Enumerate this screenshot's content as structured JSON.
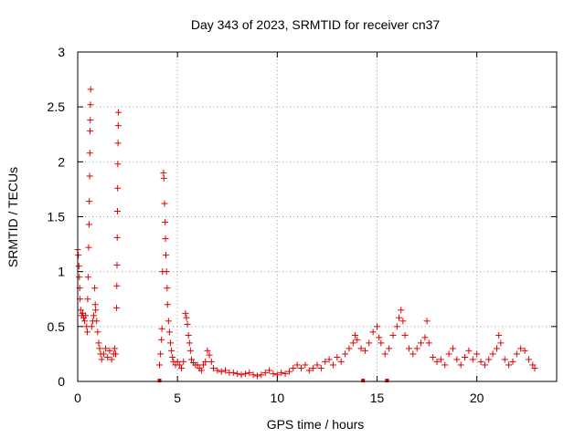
{
  "chart_data": {
    "type": "scatter",
    "title": "Day 343 of 2023, SRMTID for receiver cn37",
    "xlabel": "GPS time / hours",
    "ylabel": "SRMTID / TECUs",
    "xlim": [
      0,
      24
    ],
    "ylim": [
      0,
      3
    ],
    "xticks": [
      0,
      5,
      10,
      15,
      20
    ],
    "yticks": [
      0,
      0.5,
      1,
      1.5,
      2,
      2.5,
      3
    ],
    "xtick_labels": [
      "0",
      "5",
      "10",
      "15",
      "20"
    ],
    "ytick_labels": [
      "0",
      "0.5",
      "1",
      "1.5",
      "2",
      "2.5",
      "3"
    ],
    "grid": true,
    "marker": "+",
    "color": "#e00000",
    "series": [
      {
        "name": "SRMTID",
        "points": [
          [
            0.0,
            1.2
          ],
          [
            0.03,
            1.15
          ],
          [
            0.06,
            1.05
          ],
          [
            0.08,
            0.95
          ],
          [
            0.1,
            0.85
          ],
          [
            0.12,
            0.75
          ],
          [
            0.15,
            0.65
          ],
          [
            0.2,
            0.6
          ],
          [
            0.25,
            0.62
          ],
          [
            0.3,
            0.58
          ],
          [
            0.35,
            0.55
          ],
          [
            0.4,
            0.6
          ],
          [
            0.45,
            0.5
          ],
          [
            0.48,
            0.45
          ],
          [
            0.5,
            0.75
          ],
          [
            0.52,
            0.95
          ],
          [
            0.55,
            1.22
          ],
          [
            0.57,
            1.43
          ],
          [
            0.58,
            1.64
          ],
          [
            0.6,
            1.87
          ],
          [
            0.61,
            2.08
          ],
          [
            0.62,
            2.28
          ],
          [
            0.63,
            2.38
          ],
          [
            0.64,
            2.52
          ],
          [
            0.65,
            2.66
          ],
          [
            0.7,
            0.5
          ],
          [
            0.75,
            0.55
          ],
          [
            0.8,
            0.6
          ],
          [
            0.85,
            0.85
          ],
          [
            0.88,
            0.7
          ],
          [
            0.9,
            0.65
          ],
          [
            0.95,
            0.55
          ],
          [
            1.0,
            0.45
          ],
          [
            1.05,
            0.35
          ],
          [
            1.1,
            0.3
          ],
          [
            1.15,
            0.25
          ],
          [
            1.2,
            0.2
          ],
          [
            1.3,
            0.25
          ],
          [
            1.4,
            0.3
          ],
          [
            1.5,
            0.22
          ],
          [
            1.6,
            0.28
          ],
          [
            1.7,
            0.2
          ],
          [
            1.8,
            0.25
          ],
          [
            1.85,
            0.3
          ],
          [
            1.9,
            0.25
          ],
          [
            1.95,
            0.67
          ],
          [
            1.96,
            0.87
          ],
          [
            1.97,
            1.06
          ],
          [
            1.98,
            1.31
          ],
          [
            1.99,
            1.55
          ],
          [
            2.0,
            1.76
          ],
          [
            2.01,
            1.98
          ],
          [
            2.02,
            2.17
          ],
          [
            2.03,
            2.33
          ],
          [
            2.04,
            2.45
          ],
          [
            4.1,
            0.15
          ],
          [
            4.15,
            0.25
          ],
          [
            4.2,
            0.38
          ],
          [
            4.22,
            0.48
          ],
          [
            4.25,
            1.0
          ],
          [
            4.3,
            1.9
          ],
          [
            4.32,
            1.85
          ],
          [
            4.35,
            1.62
          ],
          [
            4.38,
            1.45
          ],
          [
            4.4,
            1.3
          ],
          [
            4.42,
            1.15
          ],
          [
            4.45,
            1.0
          ],
          [
            4.48,
            0.85
          ],
          [
            4.5,
            0.7
          ],
          [
            4.55,
            0.55
          ],
          [
            4.6,
            0.45
          ],
          [
            4.65,
            0.35
          ],
          [
            4.7,
            0.28
          ],
          [
            4.75,
            0.22
          ],
          [
            4.8,
            0.18
          ],
          [
            4.9,
            0.15
          ],
          [
            5.0,
            0.18
          ],
          [
            5.1,
            0.15
          ],
          [
            5.2,
            0.12
          ],
          [
            5.3,
            0.18
          ],
          [
            5.4,
            0.62
          ],
          [
            5.45,
            0.58
          ],
          [
            5.5,
            0.52
          ],
          [
            5.55,
            0.42
          ],
          [
            5.6,
            0.35
          ],
          [
            5.65,
            0.28
          ],
          [
            5.7,
            0.2
          ],
          [
            5.8,
            0.17
          ],
          [
            5.9,
            0.15
          ],
          [
            6.0,
            0.15
          ],
          [
            6.1,
            0.12
          ],
          [
            6.2,
            0.1
          ],
          [
            6.3,
            0.15
          ],
          [
            6.4,
            0.18
          ],
          [
            6.5,
            0.28
          ],
          [
            6.6,
            0.24
          ],
          [
            6.7,
            0.18
          ],
          [
            6.8,
            0.12
          ],
          [
            7.0,
            0.1
          ],
          [
            7.2,
            0.09
          ],
          [
            7.4,
            0.1
          ],
          [
            7.6,
            0.08
          ],
          [
            7.8,
            0.08
          ],
          [
            8.0,
            0.07
          ],
          [
            8.2,
            0.06
          ],
          [
            8.4,
            0.07
          ],
          [
            8.6,
            0.08
          ],
          [
            8.8,
            0.06
          ],
          [
            9.0,
            0.05
          ],
          [
            9.2,
            0.06
          ],
          [
            9.4,
            0.08
          ],
          [
            9.6,
            0.1
          ],
          [
            9.8,
            0.07
          ],
          [
            10.0,
            0.06
          ],
          [
            10.2,
            0.08
          ],
          [
            10.4,
            0.07
          ],
          [
            10.6,
            0.09
          ],
          [
            10.8,
            0.12
          ],
          [
            11.0,
            0.15
          ],
          [
            11.2,
            0.12
          ],
          [
            11.4,
            0.15
          ],
          [
            11.6,
            0.1
          ],
          [
            11.8,
            0.12
          ],
          [
            12.0,
            0.15
          ],
          [
            12.2,
            0.12
          ],
          [
            12.4,
            0.18
          ],
          [
            12.6,
            0.2
          ],
          [
            12.8,
            0.15
          ],
          [
            13.0,
            0.22
          ],
          [
            13.2,
            0.18
          ],
          [
            13.4,
            0.25
          ],
          [
            13.6,
            0.3
          ],
          [
            13.8,
            0.35
          ],
          [
            13.9,
            0.42
          ],
          [
            14.0,
            0.38
          ],
          [
            14.2,
            0.3
          ],
          [
            14.4,
            0.28
          ],
          [
            14.6,
            0.35
          ],
          [
            14.8,
            0.45
          ],
          [
            15.0,
            0.5
          ],
          [
            15.1,
            0.4
          ],
          [
            15.2,
            0.35
          ],
          [
            15.4,
            0.25
          ],
          [
            15.6,
            0.3
          ],
          [
            15.8,
            0.42
          ],
          [
            16.0,
            0.5
          ],
          [
            16.1,
            0.58
          ],
          [
            16.2,
            0.65
          ],
          [
            16.3,
            0.55
          ],
          [
            16.4,
            0.42
          ],
          [
            16.6,
            0.3
          ],
          [
            16.8,
            0.25
          ],
          [
            17.0,
            0.3
          ],
          [
            17.2,
            0.35
          ],
          [
            17.4,
            0.4
          ],
          [
            17.5,
            0.55
          ],
          [
            17.6,
            0.35
          ],
          [
            17.8,
            0.22
          ],
          [
            18.0,
            0.18
          ],
          [
            18.2,
            0.2
          ],
          [
            18.4,
            0.15
          ],
          [
            18.6,
            0.25
          ],
          [
            18.8,
            0.3
          ],
          [
            19.0,
            0.2
          ],
          [
            19.2,
            0.15
          ],
          [
            19.4,
            0.22
          ],
          [
            19.6,
            0.28
          ],
          [
            19.8,
            0.2
          ],
          [
            20.0,
            0.25
          ],
          [
            20.2,
            0.18
          ],
          [
            20.4,
            0.15
          ],
          [
            20.6,
            0.2
          ],
          [
            20.8,
            0.25
          ],
          [
            21.0,
            0.3
          ],
          [
            21.1,
            0.42
          ],
          [
            21.2,
            0.35
          ],
          [
            21.4,
            0.2
          ],
          [
            21.6,
            0.15
          ],
          [
            21.8,
            0.18
          ],
          [
            22.0,
            0.25
          ],
          [
            22.2,
            0.3
          ],
          [
            22.4,
            0.28
          ],
          [
            22.6,
            0.2
          ],
          [
            22.8,
            0.15
          ],
          [
            22.9,
            0.12
          ]
        ]
      }
    ],
    "gap_markers_x": [
      4.1,
      14.3,
      15.5
    ]
  }
}
